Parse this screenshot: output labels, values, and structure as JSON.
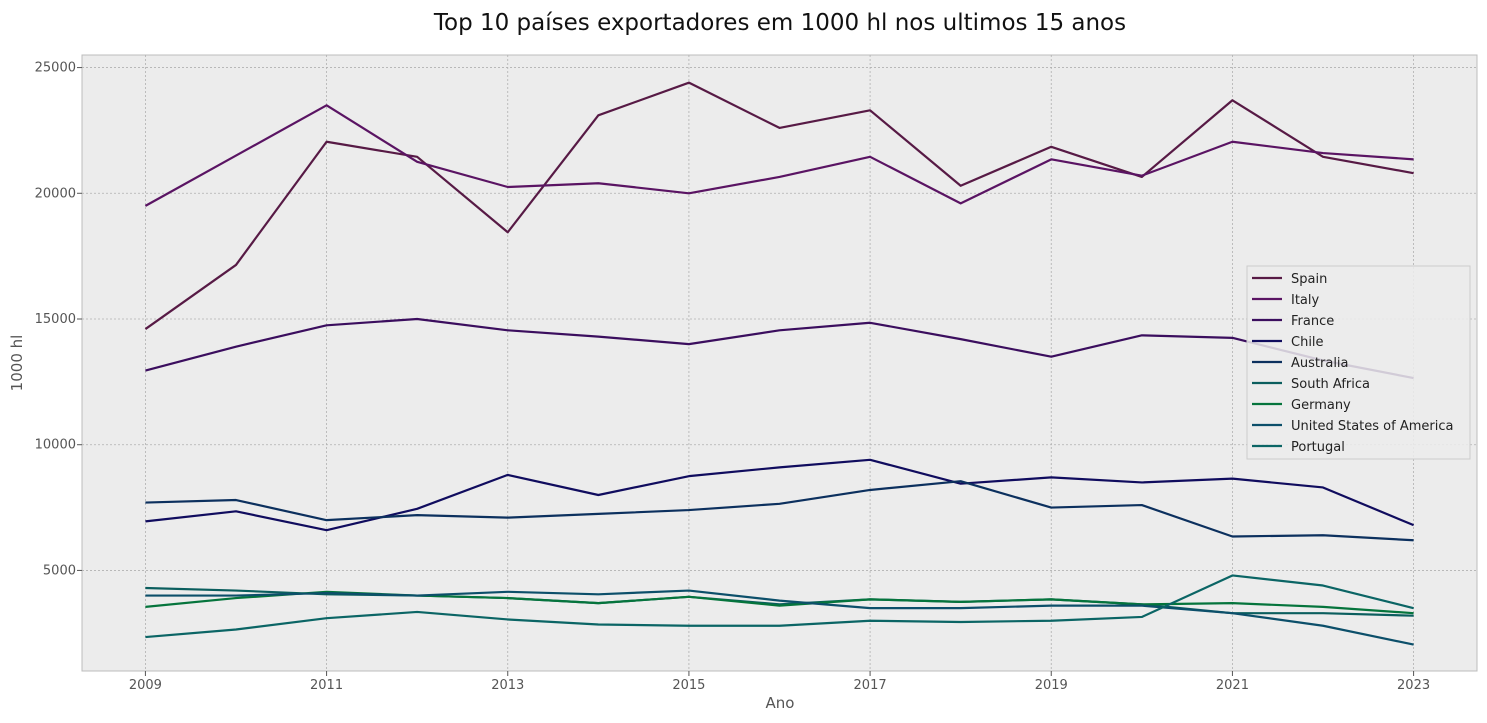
{
  "chart_data": {
    "type": "line",
    "title": "Top 10 países exportadores em 1000 hl nos ultimos 15 anos",
    "xlabel": "Ano",
    "ylabel": "1000 hl",
    "x": [
      2009,
      2010,
      2011,
      2012,
      2013,
      2014,
      2015,
      2016,
      2017,
      2018,
      2019,
      2020,
      2021,
      2022,
      2023
    ],
    "x_ticks": [
      "2009",
      "2011",
      "2013",
      "2015",
      "2017",
      "2019",
      "2021",
      "2023"
    ],
    "y_ticks": [
      "5000",
      "10000",
      "15000",
      "20000",
      "25000"
    ],
    "xlim": [
      2008.3,
      2023.7
    ],
    "ylim": [
      1000,
      25500
    ],
    "grid": true,
    "legend_position": "center-right",
    "series": [
      {
        "name": "Spain",
        "color": "#571a45",
        "values": [
          14600,
          17150,
          22050,
          21450,
          18450,
          23100,
          24400,
          22600,
          23300,
          20300,
          21850,
          20650,
          23700,
          21450,
          20800
        ]
      },
      {
        "name": "Italy",
        "color": "#5a1463",
        "values": [
          19500,
          21500,
          23500,
          21250,
          20250,
          20400,
          20000,
          20650,
          21450,
          19600,
          21350,
          20700,
          22050,
          21600,
          21350
        ]
      },
      {
        "name": "France",
        "color": "#3b0e5e",
        "values": [
          12950,
          13900,
          14750,
          15000,
          14550,
          14300,
          14000,
          14550,
          14850,
          14200,
          13500,
          14350,
          14250,
          13350,
          12650
        ]
      },
      {
        "name": "Chile",
        "color": "#100c5e",
        "values": [
          6950,
          7350,
          6600,
          7450,
          8800,
          8000,
          8750,
          9100,
          9400,
          8450,
          8700,
          8500,
          8650,
          8300,
          6800
        ]
      },
      {
        "name": "Australia",
        "color": "#0c305e",
        "values": [
          7700,
          7800,
          7000,
          7200,
          7100,
          7250,
          7400,
          7650,
          8200,
          8550,
          7500,
          7600,
          6350,
          6400,
          6200
        ]
      },
      {
        "name": "South Africa",
        "color": "#0b5e5e",
        "values": [
          4300,
          4200,
          4050,
          4000,
          3900,
          3700,
          3950,
          3650,
          3850,
          3750,
          3850,
          3650,
          3300,
          3300,
          3200
        ]
      },
      {
        "name": "Germany",
        "color": "#05743c",
        "values": [
          3550,
          3900,
          4150,
          4000,
          3900,
          3700,
          3950,
          3600,
          3850,
          3750,
          3850,
          3650,
          3700,
          3550,
          3300
        ]
      },
      {
        "name": "United States of America",
        "color": "#0c4f6a",
        "values": [
          4000,
          4000,
          4100,
          4000,
          4150,
          4050,
          4200,
          3800,
          3500,
          3500,
          3600,
          3600,
          3300,
          2800,
          2050
        ]
      },
      {
        "name": "Portugal",
        "color": "#0b6565",
        "values": [
          2350,
          2650,
          3100,
          3350,
          3050,
          2850,
          2800,
          2800,
          3000,
          2950,
          3000,
          3150,
          4800,
          4400,
          3500
        ]
      }
    ]
  }
}
